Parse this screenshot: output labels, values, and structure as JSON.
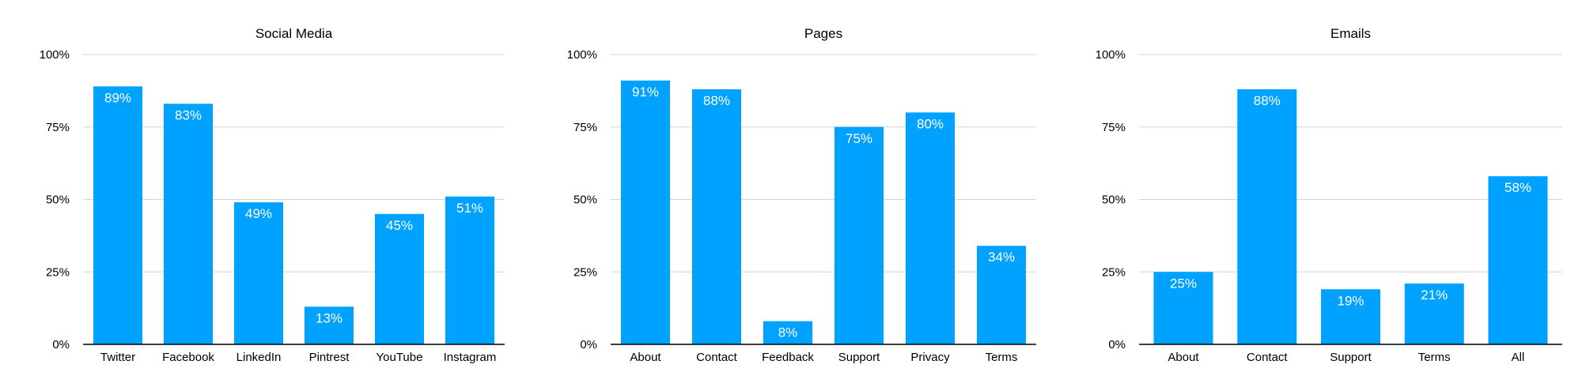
{
  "chart_data": [
    {
      "type": "bar",
      "title": "Social Media",
      "categories": [
        "Twitter",
        "Facebook",
        "LinkedIn",
        "Pintrest",
        "YouTube",
        "Instagram"
      ],
      "values": [
        89,
        83,
        49,
        13,
        45,
        51
      ],
      "data_labels": [
        "89%",
        "83%",
        "49%",
        "13%",
        "45%",
        "51%"
      ],
      "ylim": [
        0,
        100
      ],
      "yticks": [
        0,
        25,
        50,
        75,
        100
      ],
      "ytick_labels": [
        "0%",
        "25%",
        "50%",
        "75%",
        "100%"
      ],
      "xlabel": "",
      "ylabel": "",
      "grid": true,
      "legend": false,
      "bar_color": "#00A2FF"
    },
    {
      "type": "bar",
      "title": "Pages",
      "categories": [
        "About",
        "Contact",
        "Feedback",
        "Support",
        "Privacy",
        "Terms"
      ],
      "values": [
        91,
        88,
        8,
        75,
        80,
        34
      ],
      "data_labels": [
        "91%",
        "88%",
        "8%",
        "75%",
        "80%",
        "34%"
      ],
      "ylim": [
        0,
        100
      ],
      "yticks": [
        0,
        25,
        50,
        75,
        100
      ],
      "ytick_labels": [
        "0%",
        "25%",
        "50%",
        "75%",
        "100%"
      ],
      "xlabel": "",
      "ylabel": "",
      "grid": true,
      "legend": false,
      "bar_color": "#00A2FF"
    },
    {
      "type": "bar",
      "title": "Emails",
      "categories": [
        "About",
        "Contact",
        "Support",
        "Terms",
        "All"
      ],
      "values": [
        25,
        88,
        19,
        21,
        58
      ],
      "data_labels": [
        "25%",
        "88%",
        "19%",
        "21%",
        "58%"
      ],
      "ylim": [
        0,
        100
      ],
      "yticks": [
        0,
        25,
        50,
        75,
        100
      ],
      "ytick_labels": [
        "0%",
        "25%",
        "50%",
        "75%",
        "100%"
      ],
      "xlabel": "",
      "ylabel": "",
      "grid": true,
      "legend": false,
      "bar_color": "#00A2FF"
    }
  ],
  "colors": {
    "bar": "#00A2FF",
    "grid": "#D4D4D4",
    "axis": "#000000",
    "text": "#000000",
    "bar_label": "#FFFFFF"
  }
}
